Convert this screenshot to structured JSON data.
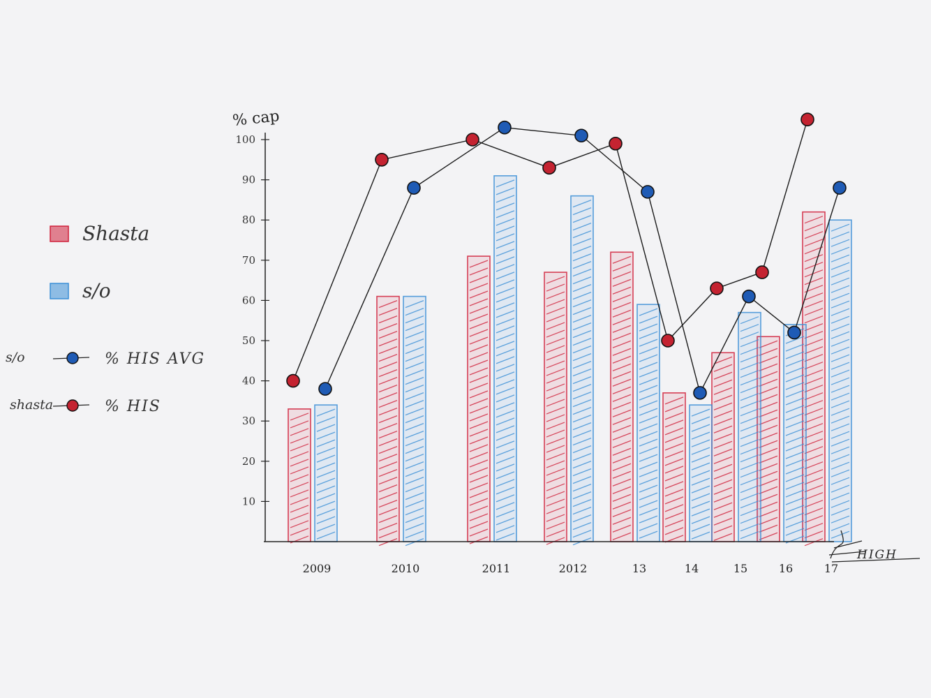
{
  "chart_data": {
    "type": "bar",
    "ylabel": "% cap",
    "x_tick_labels": [
      "2009",
      "2010",
      "2011",
      "2012",
      "13",
      "14",
      "15",
      "16",
      "17"
    ],
    "y_tick_labels": [
      "10",
      "20",
      "30",
      "40",
      "50",
      "60",
      "70",
      "80",
      "90",
      "100"
    ],
    "ylim": [
      0,
      100
    ],
    "corner_mark": "HIGH",
    "bar_series": [
      {
        "name": "Shasta",
        "color": "#d0203a",
        "values": [
          33,
          61,
          71,
          67,
          72,
          37,
          47,
          51,
          82
        ]
      },
      {
        "name": "s/o",
        "color": "#3a8ed6",
        "values": [
          34,
          61,
          91,
          86,
          59,
          34,
          57,
          54,
          80
        ]
      }
    ],
    "line_series": [
      {
        "name": "% HIS AVG",
        "prefix": "s/o",
        "color": "#1f5bb5",
        "values": [
          38,
          88,
          103,
          101,
          87,
          37,
          61,
          52,
          88
        ]
      },
      {
        "name": "% HIS",
        "prefix": "shasta",
        "color": "#c42331",
        "values": [
          40,
          95,
          100,
          93,
          99,
          50,
          63,
          67,
          105
        ]
      }
    ],
    "legend": [
      {
        "label": "Shasta",
        "kind": "bar",
        "color": "#d0203a"
      },
      {
        "label": "s/o",
        "kind": "bar",
        "color": "#3a8ed6"
      },
      {
        "prefix": "s/o",
        "label": "% HIS AVG",
        "kind": "line",
        "color": "#1f5bb5"
      },
      {
        "prefix": "shasta",
        "label": "% HIS",
        "kind": "line",
        "color": "#c42331"
      }
    ]
  }
}
